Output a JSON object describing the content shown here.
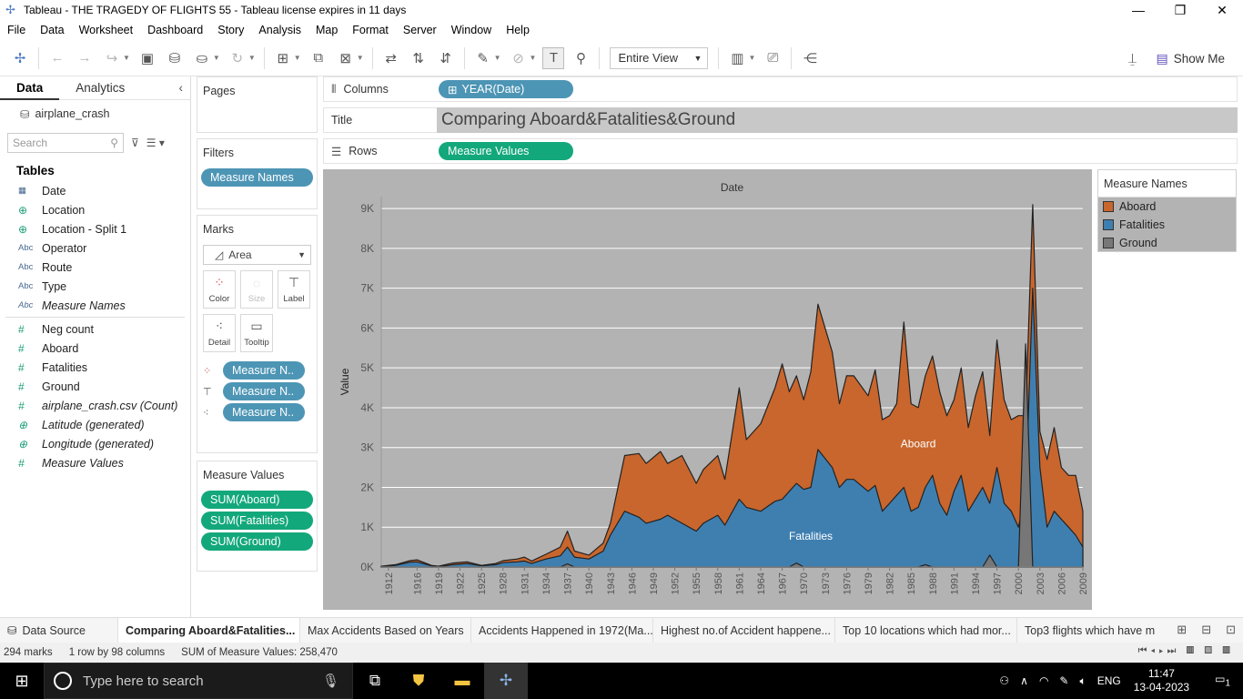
{
  "window": {
    "title": "Tableau - THE TRAGEDY OF FLIGHTS 55 - Tableau license expires in 11 days"
  },
  "menu": [
    "File",
    "Data",
    "Worksheet",
    "Dashboard",
    "Story",
    "Analysis",
    "Map",
    "Format",
    "Server",
    "Window",
    "Help"
  ],
  "toolbar": {
    "view_select": "Entire View",
    "show_me": "Show Me"
  },
  "datapane": {
    "tab_data": "Data",
    "tab_analytics": "Analytics",
    "datasource": "airplane_crash",
    "search_placeholder": "Search",
    "tables_heading": "Tables",
    "dimensions": [
      {
        "type": "date",
        "label": "Date"
      },
      {
        "type": "geo",
        "label": "Location"
      },
      {
        "type": "geo",
        "label": "Location - Split 1"
      },
      {
        "type": "Abc",
        "label": "Operator"
      },
      {
        "type": "Abc",
        "label": "Route"
      },
      {
        "type": "Abc",
        "label": "Type"
      },
      {
        "type": "Abc",
        "label": "Measure Names",
        "italic": true
      }
    ],
    "measures": [
      {
        "type": "#",
        "label": "Neg count"
      },
      {
        "type": "#",
        "label": "Aboard"
      },
      {
        "type": "#",
        "label": "Fatalities"
      },
      {
        "type": "#",
        "label": "Ground"
      },
      {
        "type": "#",
        "label": "airplane_crash.csv (Count)",
        "italic": true
      },
      {
        "type": "geo",
        "label": "Latitude (generated)",
        "italic": true
      },
      {
        "type": "geo",
        "label": "Longitude (generated)",
        "italic": true
      },
      {
        "type": "#",
        "label": "Measure Values",
        "italic": true
      }
    ]
  },
  "cards": {
    "pages": "Pages",
    "filters": "Filters",
    "filter_pill": "Measure Names",
    "marks": "Marks",
    "mark_type": "Area",
    "mark_buttons": [
      "Color",
      "Size",
      "Label",
      "Detail",
      "Tooltip"
    ],
    "mark_pills": [
      "Measure N..",
      "Measure N..",
      "Measure N.."
    ],
    "measure_values": "Measure Values",
    "measure_value_pills": [
      "SUM(Aboard)",
      "SUM(Fatalities)",
      "SUM(Ground)"
    ]
  },
  "shelves": {
    "columns_label": "Columns",
    "columns_pill": "YEAR(Date)",
    "title_label": "Title",
    "title_value": "Comparing Aboard&Fatalities&Ground",
    "rows_label": "Rows",
    "rows_pill": "Measure Values"
  },
  "legend": {
    "title": "Measure Names",
    "items": [
      {
        "label": "Aboard",
        "color": "#c8662d"
      },
      {
        "label": "Fatalities",
        "color": "#3f7fb0"
      },
      {
        "label": "Ground",
        "color": "#777777"
      }
    ]
  },
  "chart_data": {
    "type": "area",
    "top_axis_title": "Date",
    "ylabel": "Value",
    "ylim": [
      0,
      9300
    ],
    "yticks": [
      "0K",
      "1K",
      "2K",
      "3K",
      "4K",
      "5K",
      "6K",
      "7K",
      "8K",
      "9K"
    ],
    "ytick_values": [
      0,
      1000,
      2000,
      3000,
      4000,
      5000,
      6000,
      7000,
      8000,
      9000
    ],
    "xlim": [
      1911,
      2009
    ],
    "xticks": [
      1912,
      1916,
      1919,
      1922,
      1925,
      1928,
      1931,
      1934,
      1937,
      1940,
      1943,
      1946,
      1949,
      1952,
      1955,
      1958,
      1961,
      1964,
      1967,
      1970,
      1973,
      1976,
      1979,
      1982,
      1985,
      1988,
      1991,
      1994,
      1997,
      2000,
      2003,
      2006,
      2009
    ],
    "annotations": [
      {
        "text": "Aboard",
        "x": 1986,
        "y": 3000
      },
      {
        "text": "Fatalities",
        "x": 1971,
        "y": 690
      }
    ],
    "series": [
      {
        "name": "Aboard",
        "color": "#c8662d",
        "points": [
          [
            1911,
            20
          ],
          [
            1913,
            60
          ],
          [
            1915,
            160
          ],
          [
            1916,
            180
          ],
          [
            1918,
            40
          ],
          [
            1919,
            20
          ],
          [
            1921,
            100
          ],
          [
            1923,
            130
          ],
          [
            1925,
            40
          ],
          [
            1927,
            90
          ],
          [
            1928,
            160
          ],
          [
            1930,
            200
          ],
          [
            1931,
            250
          ],
          [
            1932,
            150
          ],
          [
            1934,
            320
          ],
          [
            1936,
            500
          ],
          [
            1937,
            900
          ],
          [
            1938,
            400
          ],
          [
            1940,
            300
          ],
          [
            1942,
            600
          ],
          [
            1943,
            1100
          ],
          [
            1945,
            2800
          ],
          [
            1947,
            2850
          ],
          [
            1948,
            2600
          ],
          [
            1950,
            2900
          ],
          [
            1951,
            2600
          ],
          [
            1953,
            2800
          ],
          [
            1955,
            2100
          ],
          [
            1956,
            2450
          ],
          [
            1958,
            2800
          ],
          [
            1959,
            2200
          ],
          [
            1961,
            4500
          ],
          [
            1962,
            3200
          ],
          [
            1964,
            3600
          ],
          [
            1966,
            4500
          ],
          [
            1967,
            5100
          ],
          [
            1968,
            4400
          ],
          [
            1969,
            4800
          ],
          [
            1970,
            4200
          ],
          [
            1971,
            4900
          ],
          [
            1972,
            6600
          ],
          [
            1974,
            5400
          ],
          [
            1975,
            4100
          ],
          [
            1976,
            4800
          ],
          [
            1977,
            4800
          ],
          [
            1979,
            4300
          ],
          [
            1980,
            4950
          ],
          [
            1981,
            3700
          ],
          [
            1982,
            3800
          ],
          [
            1983,
            4100
          ],
          [
            1984,
            6150
          ],
          [
            1985,
            4100
          ],
          [
            1986,
            4000
          ],
          [
            1987,
            4800
          ],
          [
            1988,
            5300
          ],
          [
            1989,
            4400
          ],
          [
            1990,
            3800
          ],
          [
            1991,
            4200
          ],
          [
            1992,
            5000
          ],
          [
            1993,
            3500
          ],
          [
            1994,
            4300
          ],
          [
            1995,
            4900
          ],
          [
            1996,
            3300
          ],
          [
            1997,
            5700
          ],
          [
            1998,
            4200
          ],
          [
            1999,
            3700
          ],
          [
            2000,
            3800
          ],
          [
            2001,
            3800
          ],
          [
            2002,
            9100
          ],
          [
            2003,
            3400
          ],
          [
            2004,
            2700
          ],
          [
            2005,
            3500
          ],
          [
            2006,
            2500
          ],
          [
            2007,
            2300
          ],
          [
            2008,
            2300
          ],
          [
            2009,
            1400
          ]
        ]
      },
      {
        "name": "Fatalities",
        "color": "#3f7fb0",
        "points": [
          [
            1911,
            10
          ],
          [
            1913,
            40
          ],
          [
            1915,
            120
          ],
          [
            1916,
            130
          ],
          [
            1918,
            30
          ],
          [
            1919,
            10
          ],
          [
            1921,
            60
          ],
          [
            1923,
            90
          ],
          [
            1925,
            30
          ],
          [
            1927,
            60
          ],
          [
            1928,
            110
          ],
          [
            1930,
            130
          ],
          [
            1931,
            150
          ],
          [
            1932,
            90
          ],
          [
            1934,
            200
          ],
          [
            1936,
            280
          ],
          [
            1937,
            500
          ],
          [
            1938,
            250
          ],
          [
            1940,
            200
          ],
          [
            1942,
            400
          ],
          [
            1943,
            800
          ],
          [
            1945,
            1400
          ],
          [
            1947,
            1250
          ],
          [
            1948,
            1100
          ],
          [
            1950,
            1200
          ],
          [
            1951,
            1300
          ],
          [
            1953,
            1100
          ],
          [
            1955,
            900
          ],
          [
            1956,
            1100
          ],
          [
            1958,
            1300
          ],
          [
            1959,
            1050
          ],
          [
            1961,
            1700
          ],
          [
            1962,
            1500
          ],
          [
            1964,
            1400
          ],
          [
            1966,
            1650
          ],
          [
            1967,
            1700
          ],
          [
            1968,
            1900
          ],
          [
            1969,
            2100
          ],
          [
            1970,
            1950
          ],
          [
            1971,
            2000
          ],
          [
            1972,
            2950
          ],
          [
            1974,
            2500
          ],
          [
            1975,
            2000
          ],
          [
            1976,
            2200
          ],
          [
            1977,
            2200
          ],
          [
            1979,
            1900
          ],
          [
            1980,
            2050
          ],
          [
            1981,
            1400
          ],
          [
            1982,
            1600
          ],
          [
            1983,
            1800
          ],
          [
            1984,
            2000
          ],
          [
            1985,
            1400
          ],
          [
            1986,
            1500
          ],
          [
            1987,
            2000
          ],
          [
            1988,
            2300
          ],
          [
            1989,
            1600
          ],
          [
            1990,
            1300
          ],
          [
            1991,
            1900
          ],
          [
            1992,
            2300
          ],
          [
            1993,
            1400
          ],
          [
            1994,
            1700
          ],
          [
            1995,
            2000
          ],
          [
            1996,
            1600
          ],
          [
            1997,
            2500
          ],
          [
            1998,
            1600
          ],
          [
            1999,
            1400
          ],
          [
            2000,
            1000
          ],
          [
            2001,
            1800
          ],
          [
            2002,
            7000
          ],
          [
            2003,
            2500
          ],
          [
            2004,
            1000
          ],
          [
            2005,
            1400
          ],
          [
            2006,
            1200
          ],
          [
            2007,
            1000
          ],
          [
            2008,
            800
          ],
          [
            2009,
            500
          ]
        ]
      },
      {
        "name": "Ground",
        "color": "#777777",
        "points": [
          [
            1911,
            0
          ],
          [
            1936,
            0
          ],
          [
            1937,
            80
          ],
          [
            1938,
            0
          ],
          [
            1968,
            0
          ],
          [
            1969,
            100
          ],
          [
            1970,
            0
          ],
          [
            1986,
            0
          ],
          [
            1987,
            60
          ],
          [
            1988,
            0
          ],
          [
            1995,
            0
          ],
          [
            1996,
            300
          ],
          [
            1997,
            0
          ],
          [
            2000,
            0
          ],
          [
            2001,
            5600
          ],
          [
            2002,
            0
          ],
          [
            2009,
            0
          ]
        ]
      }
    ]
  },
  "tabs": {
    "data_source": "Data Source",
    "sheets": [
      "Comparing Aboard&Fatalities...",
      "Max Accidents Based on Years",
      "Accidents Happened in 1972(Ma...",
      "Highest no.of Accident happene...",
      "Top 10 locations which had mor...",
      "Top3 flights which have m"
    ]
  },
  "status": {
    "marks": "294 marks",
    "rowscols": "1 row by 98 columns",
    "sum": "SUM of Measure Values: 258,470"
  },
  "taskbar": {
    "search_placeholder": "Type here to search",
    "lang": "ENG",
    "time": "11:47",
    "date": "13-04-2023",
    "notif": "1"
  }
}
